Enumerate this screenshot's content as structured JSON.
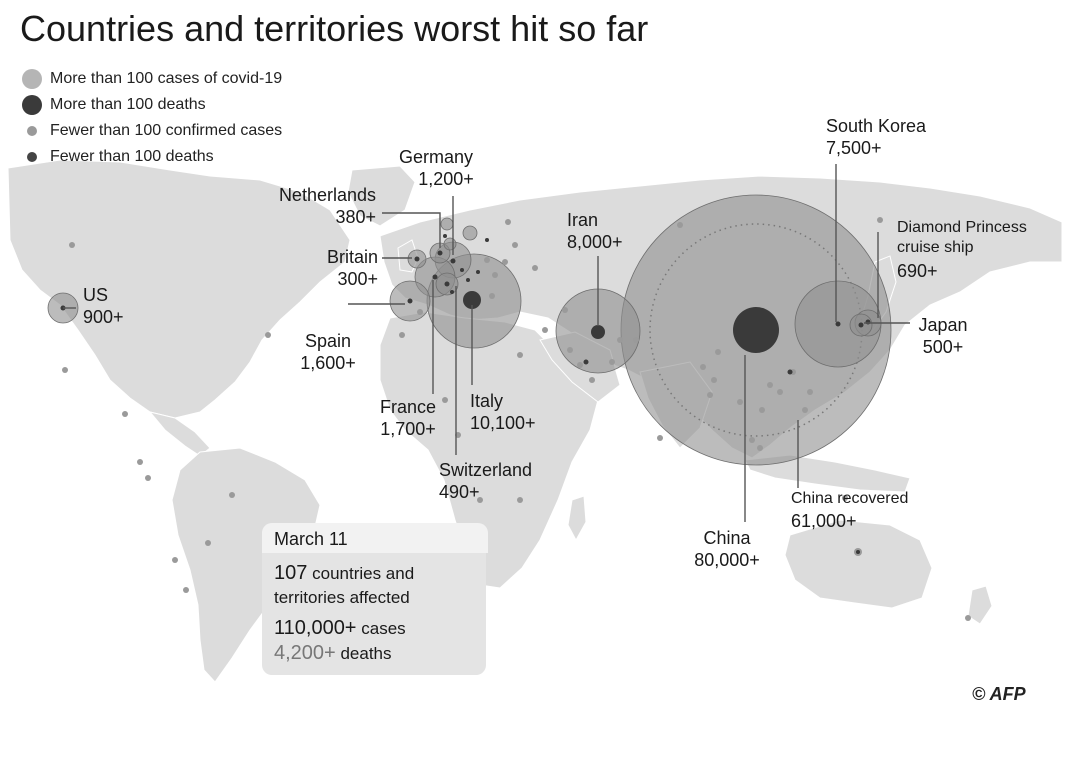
{
  "title": "Countries and territories worst hit so far",
  "legend": [
    {
      "label": "More than 100 cases of covid-19",
      "color": "#b5b5b5"
    },
    {
      "label": "More than 100 deaths",
      "color": "#3a3a3a"
    },
    {
      "label": "Fewer than 100 confirmed cases",
      "color": "#9a9a9a"
    },
    {
      "label": "Fewer than 100 deaths",
      "color": "#444444"
    }
  ],
  "labels": {
    "us": {
      "name": "US",
      "value": "900+"
    },
    "britain": {
      "name": "Britain",
      "value": "300+"
    },
    "netherlands": {
      "name": "Netherlands",
      "value": "380+"
    },
    "germany": {
      "name": "Germany",
      "value": "1,200+"
    },
    "spain": {
      "name": "Spain",
      "value": "1,600+"
    },
    "france": {
      "name": "France",
      "value": "1,700+"
    },
    "italy": {
      "name": "Italy",
      "value": "10,100+"
    },
    "switzerland": {
      "name": "Switzerland",
      "value": "490+"
    },
    "iran": {
      "name": "Iran",
      "value": "8,000+"
    },
    "south_korea": {
      "name": "South Korea",
      "value": "7,500+"
    },
    "diamond_princess": {
      "name1": "Diamond Princess",
      "name2": "cruise ship",
      "value": "690+"
    },
    "japan": {
      "name": "Japan",
      "value": "500+"
    },
    "china": {
      "name": "China",
      "value": "80,000+"
    },
    "china_recovered": {
      "name": "China recovered",
      "value": "61,000+"
    }
  },
  "summary": {
    "date": "March 11",
    "countries_num": "107",
    "countries_text1": "countries and",
    "countries_text2": "territories affected",
    "cases_num": "110,000+",
    "cases_text": "cases",
    "deaths_num": "4,200+",
    "deaths_text": "deaths"
  },
  "credit": "© AFP",
  "colors": {
    "land": "#dcdcdc",
    "case_bubble": "#8f8f8f",
    "death_bubble": "#3a3a3a",
    "leader": "#555555"
  }
}
